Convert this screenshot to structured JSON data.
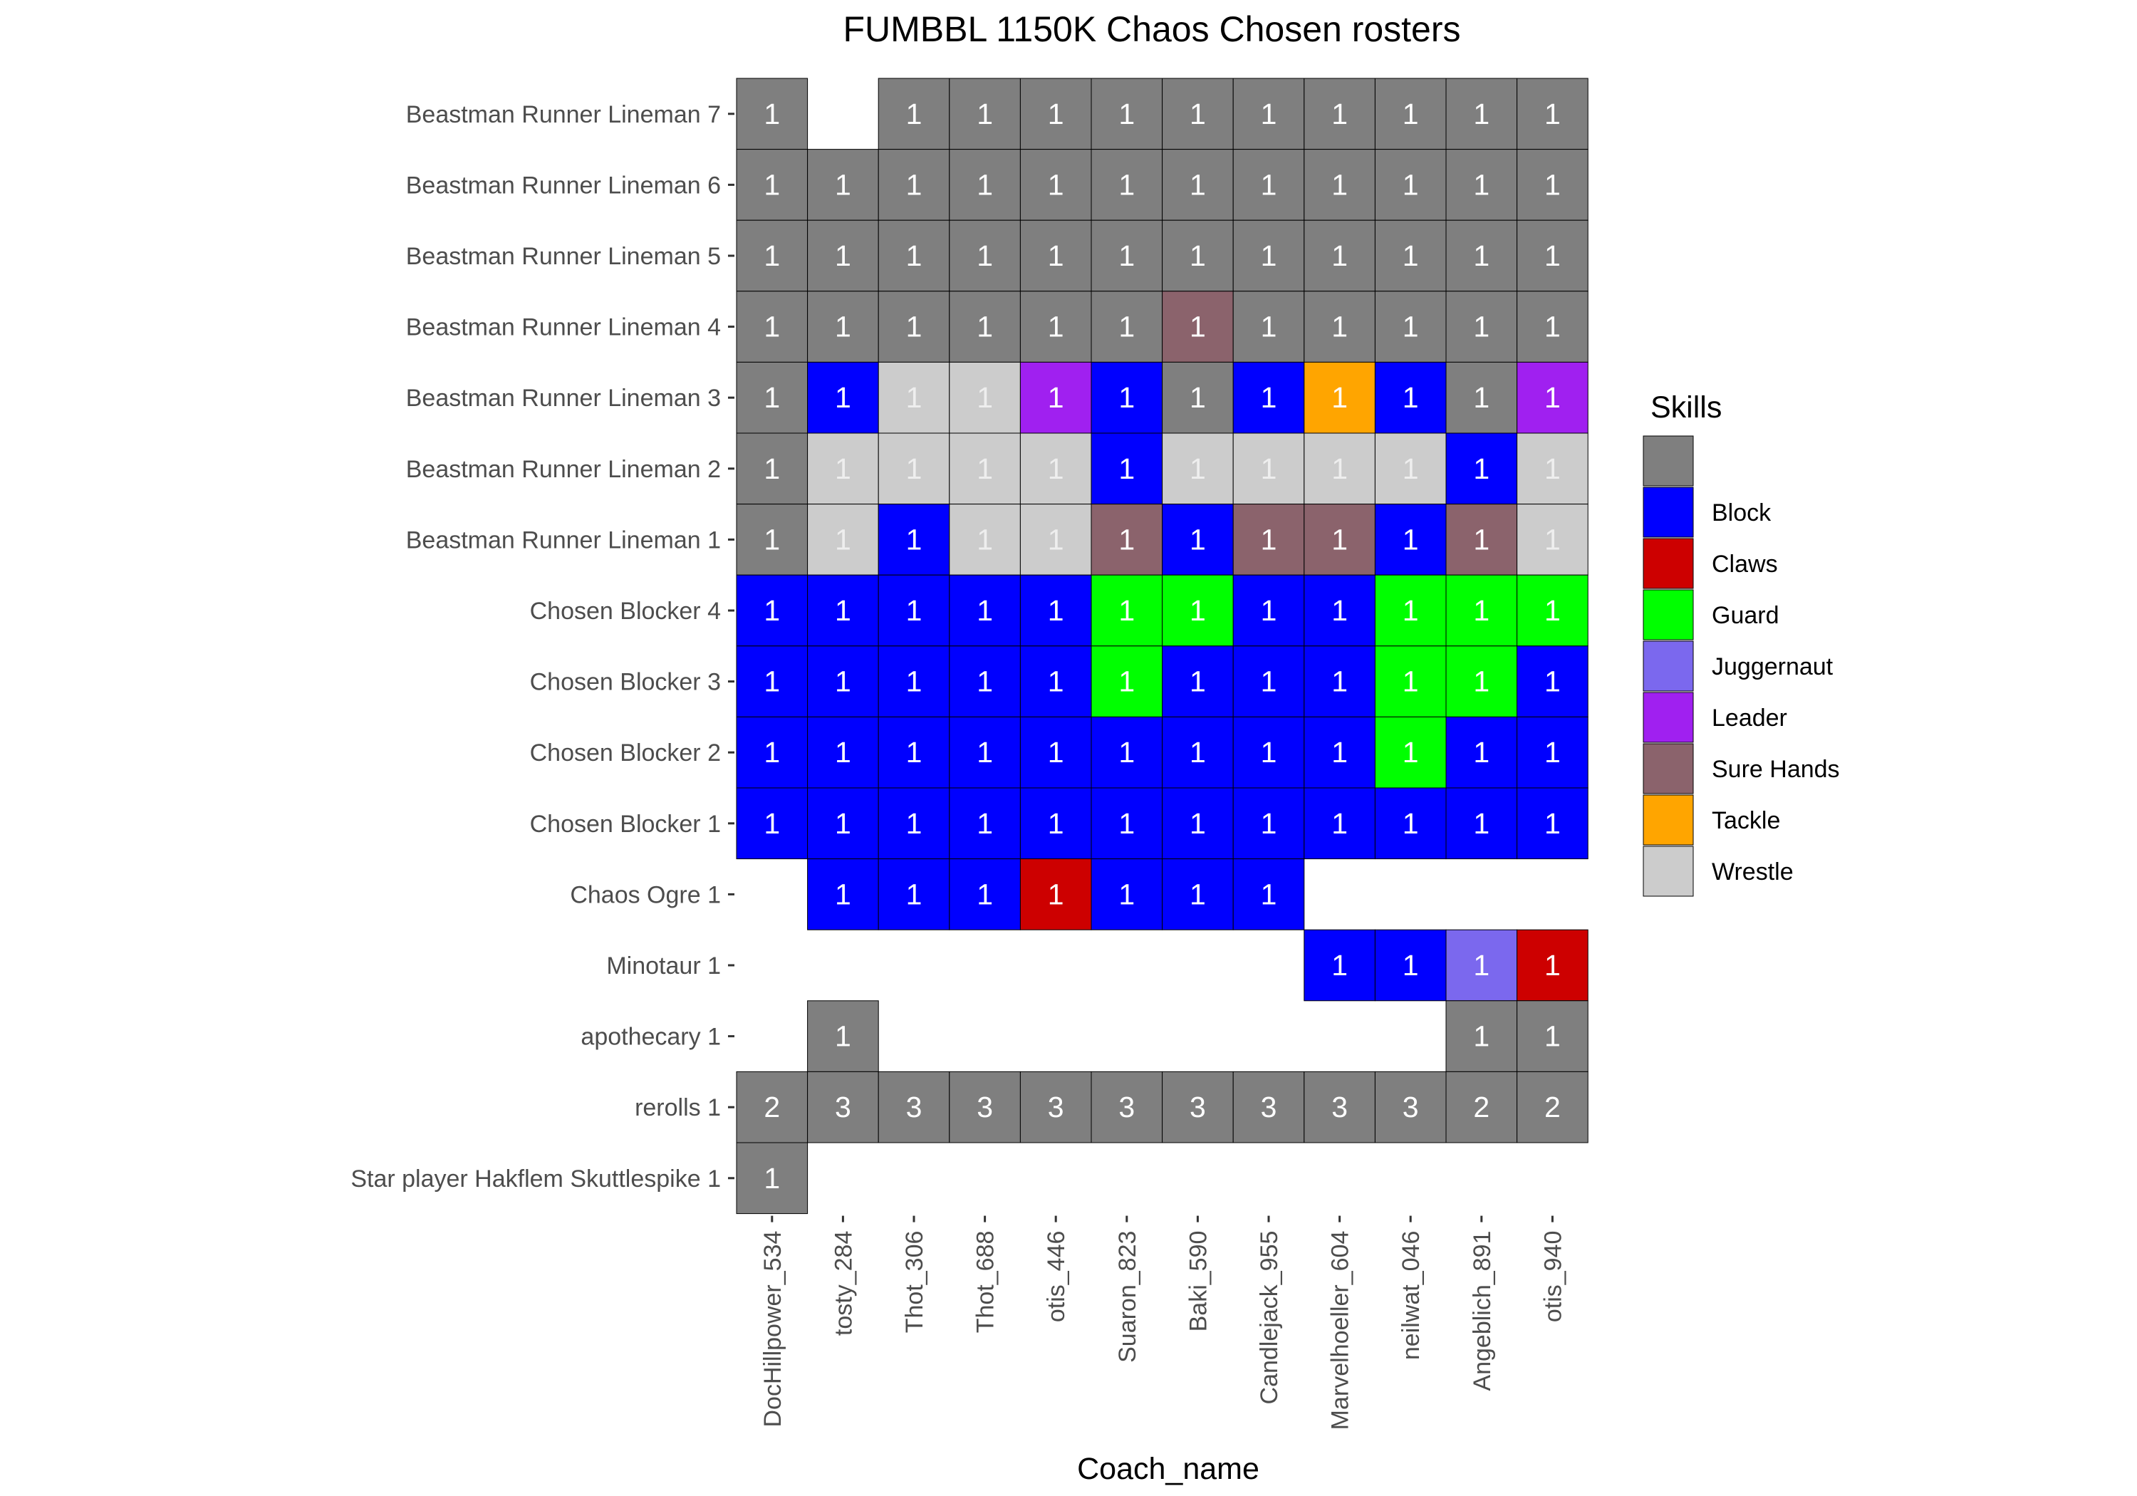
{
  "chart_data": {
    "type": "heatmap",
    "title": "FUMBBL 1150K Chaos Chosen rosters",
    "xlabel": "Coach_name",
    "ylabel": "",
    "legend_title": "Skills",
    "legend_position": "right",
    "grid": false,
    "x": [
      "DocHillpower_534",
      "tosty_284",
      "Thot_306",
      "Thot_688",
      "otis_446",
      "Suaron_823",
      "Baki_590",
      "Candlejack_955",
      "Marvelhoeller_604",
      "neilwat_046",
      "Angeblich_891",
      "otis_940"
    ],
    "y": [
      "Beastman Runner Lineman 7",
      "Beastman Runner Lineman 6",
      "Beastman Runner Lineman 5",
      "Beastman Runner Lineman 4",
      "Beastman Runner Lineman 3",
      "Beastman Runner Lineman 2",
      "Beastman Runner Lineman 1",
      "Chosen Blocker 4",
      "Chosen Blocker 3",
      "Chosen Blocker 2",
      "Chosen Blocker 1",
      "Chaos Ogre 1",
      "Minotaur 1",
      "apothecary 1",
      "rerolls 1",
      "Star player Hakflem Skuttlespike 1"
    ],
    "skills": [
      {
        "name": "",
        "color": "#7f7f7f"
      },
      {
        "name": "Block",
        "color": "#0000ff"
      },
      {
        "name": "Claws",
        "color": "#cd0000"
      },
      {
        "name": "Guard",
        "color": "#00ff00"
      },
      {
        "name": "Juggernaut",
        "color": "#7b68ee"
      },
      {
        "name": "Leader",
        "color": "#a020f0"
      },
      {
        "name": "Sure Hands",
        "color": "#8b636c"
      },
      {
        "name": "Tackle",
        "color": "#ffa500"
      },
      {
        "name": "Wrestle",
        "color": "#cccccc"
      }
    ],
    "cells": [
      [
        0,
        0,
        1,
        ""
      ],
      [
        0,
        2,
        1,
        ""
      ],
      [
        0,
        3,
        1,
        ""
      ],
      [
        0,
        4,
        1,
        ""
      ],
      [
        0,
        5,
        1,
        ""
      ],
      [
        0,
        6,
        1,
        ""
      ],
      [
        0,
        7,
        1,
        ""
      ],
      [
        0,
        8,
        1,
        ""
      ],
      [
        0,
        9,
        1,
        ""
      ],
      [
        0,
        10,
        1,
        ""
      ],
      [
        0,
        11,
        1,
        ""
      ],
      [
        1,
        0,
        1,
        ""
      ],
      [
        1,
        1,
        1,
        ""
      ],
      [
        1,
        2,
        1,
        ""
      ],
      [
        1,
        3,
        1,
        ""
      ],
      [
        1,
        4,
        1,
        ""
      ],
      [
        1,
        5,
        1,
        ""
      ],
      [
        1,
        6,
        1,
        ""
      ],
      [
        1,
        7,
        1,
        ""
      ],
      [
        1,
        8,
        1,
        ""
      ],
      [
        1,
        9,
        1,
        ""
      ],
      [
        1,
        10,
        1,
        ""
      ],
      [
        1,
        11,
        1,
        ""
      ],
      [
        2,
        0,
        1,
        ""
      ],
      [
        2,
        1,
        1,
        ""
      ],
      [
        2,
        2,
        1,
        ""
      ],
      [
        2,
        3,
        1,
        ""
      ],
      [
        2,
        4,
        1,
        ""
      ],
      [
        2,
        5,
        1,
        ""
      ],
      [
        2,
        6,
        1,
        ""
      ],
      [
        2,
        7,
        1,
        ""
      ],
      [
        2,
        8,
        1,
        ""
      ],
      [
        2,
        9,
        1,
        ""
      ],
      [
        2,
        10,
        1,
        ""
      ],
      [
        2,
        11,
        1,
        ""
      ],
      [
        3,
        0,
        1,
        ""
      ],
      [
        3,
        1,
        1,
        ""
      ],
      [
        3,
        2,
        1,
        ""
      ],
      [
        3,
        3,
        1,
        ""
      ],
      [
        3,
        4,
        1,
        ""
      ],
      [
        3,
        5,
        1,
        ""
      ],
      [
        3,
        6,
        1,
        "Sure Hands"
      ],
      [
        3,
        7,
        1,
        ""
      ],
      [
        3,
        8,
        1,
        ""
      ],
      [
        3,
        9,
        1,
        ""
      ],
      [
        3,
        10,
        1,
        ""
      ],
      [
        3,
        11,
        1,
        ""
      ],
      [
        4,
        0,
        1,
        ""
      ],
      [
        4,
        1,
        1,
        "Block"
      ],
      [
        4,
        2,
        1,
        "Wrestle"
      ],
      [
        4,
        3,
        1,
        "Wrestle"
      ],
      [
        4,
        4,
        1,
        "Leader"
      ],
      [
        4,
        5,
        1,
        "Block"
      ],
      [
        4,
        6,
        1,
        ""
      ],
      [
        4,
        7,
        1,
        "Block"
      ],
      [
        4,
        8,
        1,
        "Tackle"
      ],
      [
        4,
        9,
        1,
        "Block"
      ],
      [
        4,
        10,
        1,
        ""
      ],
      [
        4,
        11,
        1,
        "Leader"
      ],
      [
        5,
        0,
        1,
        ""
      ],
      [
        5,
        1,
        1,
        "Wrestle"
      ],
      [
        5,
        2,
        1,
        "Wrestle"
      ],
      [
        5,
        3,
        1,
        "Wrestle"
      ],
      [
        5,
        4,
        1,
        "Wrestle"
      ],
      [
        5,
        5,
        1,
        "Block"
      ],
      [
        5,
        6,
        1,
        "Wrestle"
      ],
      [
        5,
        7,
        1,
        "Wrestle"
      ],
      [
        5,
        8,
        1,
        "Wrestle"
      ],
      [
        5,
        9,
        1,
        "Wrestle"
      ],
      [
        5,
        10,
        1,
        "Block"
      ],
      [
        5,
        11,
        1,
        "Wrestle"
      ],
      [
        6,
        0,
        1,
        ""
      ],
      [
        6,
        1,
        1,
        "Wrestle"
      ],
      [
        6,
        2,
        1,
        "Block"
      ],
      [
        6,
        3,
        1,
        "Wrestle"
      ],
      [
        6,
        4,
        1,
        "Wrestle"
      ],
      [
        6,
        5,
        1,
        "Sure Hands"
      ],
      [
        6,
        6,
        1,
        "Block"
      ],
      [
        6,
        7,
        1,
        "Sure Hands"
      ],
      [
        6,
        8,
        1,
        "Sure Hands"
      ],
      [
        6,
        9,
        1,
        "Block"
      ],
      [
        6,
        10,
        1,
        "Sure Hands"
      ],
      [
        6,
        11,
        1,
        "Wrestle"
      ],
      [
        7,
        0,
        1,
        "Block"
      ],
      [
        7,
        1,
        1,
        "Block"
      ],
      [
        7,
        2,
        1,
        "Block"
      ],
      [
        7,
        3,
        1,
        "Block"
      ],
      [
        7,
        4,
        1,
        "Block"
      ],
      [
        7,
        5,
        1,
        "Guard"
      ],
      [
        7,
        6,
        1,
        "Guard"
      ],
      [
        7,
        7,
        1,
        "Block"
      ],
      [
        7,
        8,
        1,
        "Block"
      ],
      [
        7,
        9,
        1,
        "Guard"
      ],
      [
        7,
        10,
        1,
        "Guard"
      ],
      [
        7,
        11,
        1,
        "Guard"
      ],
      [
        8,
        0,
        1,
        "Block"
      ],
      [
        8,
        1,
        1,
        "Block"
      ],
      [
        8,
        2,
        1,
        "Block"
      ],
      [
        8,
        3,
        1,
        "Block"
      ],
      [
        8,
        4,
        1,
        "Block"
      ],
      [
        8,
        5,
        1,
        "Guard"
      ],
      [
        8,
        6,
        1,
        "Block"
      ],
      [
        8,
        7,
        1,
        "Block"
      ],
      [
        8,
        8,
        1,
        "Block"
      ],
      [
        8,
        9,
        1,
        "Guard"
      ],
      [
        8,
        10,
        1,
        "Guard"
      ],
      [
        8,
        11,
        1,
        "Block"
      ],
      [
        9,
        0,
        1,
        "Block"
      ],
      [
        9,
        1,
        1,
        "Block"
      ],
      [
        9,
        2,
        1,
        "Block"
      ],
      [
        9,
        3,
        1,
        "Block"
      ],
      [
        9,
        4,
        1,
        "Block"
      ],
      [
        9,
        5,
        1,
        "Block"
      ],
      [
        9,
        6,
        1,
        "Block"
      ],
      [
        9,
        7,
        1,
        "Block"
      ],
      [
        9,
        8,
        1,
        "Block"
      ],
      [
        9,
        9,
        1,
        "Guard"
      ],
      [
        9,
        10,
        1,
        "Block"
      ],
      [
        9,
        11,
        1,
        "Block"
      ],
      [
        10,
        0,
        1,
        "Block"
      ],
      [
        10,
        1,
        1,
        "Block"
      ],
      [
        10,
        2,
        1,
        "Block"
      ],
      [
        10,
        3,
        1,
        "Block"
      ],
      [
        10,
        4,
        1,
        "Block"
      ],
      [
        10,
        5,
        1,
        "Block"
      ],
      [
        10,
        6,
        1,
        "Block"
      ],
      [
        10,
        7,
        1,
        "Block"
      ],
      [
        10,
        8,
        1,
        "Block"
      ],
      [
        10,
        9,
        1,
        "Block"
      ],
      [
        10,
        10,
        1,
        "Block"
      ],
      [
        10,
        11,
        1,
        "Block"
      ],
      [
        11,
        1,
        1,
        "Block"
      ],
      [
        11,
        2,
        1,
        "Block"
      ],
      [
        11,
        3,
        1,
        "Block"
      ],
      [
        11,
        4,
        1,
        "Claws"
      ],
      [
        11,
        5,
        1,
        "Block"
      ],
      [
        11,
        6,
        1,
        "Block"
      ],
      [
        11,
        7,
        1,
        "Block"
      ],
      [
        12,
        8,
        1,
        "Block"
      ],
      [
        12,
        9,
        1,
        "Block"
      ],
      [
        12,
        10,
        1,
        "Juggernaut"
      ],
      [
        12,
        11,
        1,
        "Claws"
      ],
      [
        13,
        1,
        1,
        ""
      ],
      [
        13,
        10,
        1,
        ""
      ],
      [
        13,
        11,
        1,
        ""
      ],
      [
        14,
        0,
        2,
        ""
      ],
      [
        14,
        1,
        3,
        ""
      ],
      [
        14,
        2,
        3,
        ""
      ],
      [
        14,
        3,
        3,
        ""
      ],
      [
        14,
        4,
        3,
        ""
      ],
      [
        14,
        5,
        3,
        ""
      ],
      [
        14,
        6,
        3,
        ""
      ],
      [
        14,
        7,
        3,
        ""
      ],
      [
        14,
        8,
        3,
        ""
      ],
      [
        14,
        9,
        3,
        ""
      ],
      [
        14,
        10,
        2,
        ""
      ],
      [
        14,
        11,
        2,
        ""
      ],
      [
        15,
        0,
        1,
        ""
      ]
    ]
  }
}
